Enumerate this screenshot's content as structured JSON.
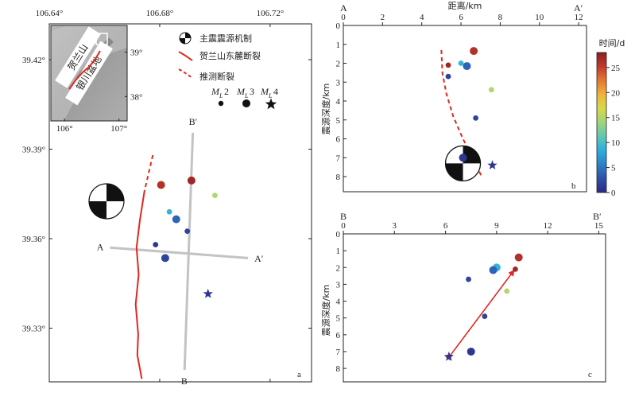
{
  "chart_data": [
    {
      "panel": "a",
      "type": "map",
      "x_ticks": [
        "106.64°",
        "106.68°",
        "106.72°"
      ],
      "y_ticks": [
        "39.42°",
        "39.39°",
        "39.36°",
        "39.33°"
      ],
      "xlim": [
        106.64,
        106.735
      ],
      "ylim": [
        39.312,
        39.432
      ],
      "fault_color": "#e3261e",
      "profile_color": "#c3c3c3",
      "profiles": [
        {
          "start_label": "A",
          "end_label": "A′",
          "start": [
            106.662,
            39.357
          ],
          "end": [
            106.712,
            39.3535
          ]
        },
        {
          "start_label": "B′",
          "end_label": "B",
          "start": [
            106.692,
            39.3955
          ],
          "end": [
            106.689,
            39.316
          ]
        }
      ],
      "fault_solid": [
        [
          106.6745,
          39.376
        ],
        [
          106.6728,
          39.366
        ],
        [
          106.6716,
          39.357
        ],
        [
          106.6724,
          39.348
        ],
        [
          106.6713,
          39.338
        ],
        [
          106.6722,
          39.328
        ],
        [
          106.6719,
          39.321
        ],
        [
          106.6735,
          39.313
        ]
      ],
      "fault_dashed": [
        [
          106.6775,
          39.388
        ],
        [
          106.6745,
          39.376
        ]
      ],
      "beachball_label": "",
      "events": [
        {
          "lon": 106.6805,
          "lat": 39.378,
          "mag": 3,
          "t": 26
        },
        {
          "lon": 106.6915,
          "lat": 39.3795,
          "mag": 3,
          "t": 27
        },
        {
          "lon": 106.7,
          "lat": 39.3745,
          "mag": 2,
          "t": 15
        },
        {
          "lon": 106.6835,
          "lat": 39.369,
          "mag": 2,
          "t": 9
        },
        {
          "lon": 106.686,
          "lat": 39.3665,
          "mag": 3,
          "t": 4
        },
        {
          "lon": 106.69,
          "lat": 39.3625,
          "mag": 2,
          "t": 2
        },
        {
          "lon": 106.6785,
          "lat": 39.358,
          "mag": 2,
          "t": 1
        },
        {
          "lon": 106.682,
          "lat": 39.3535,
          "mag": 3,
          "t": 2
        },
        {
          "lon": 106.6975,
          "lat": 39.3415,
          "mag": 4,
          "t": 1
        }
      ],
      "inset": {
        "x_ticks": [
          "106°",
          "107°"
        ],
        "y_ticks": [
          "39°",
          "38°"
        ],
        "xlim": [
          105.75,
          107.15
        ],
        "ylim": [
          37.45,
          39.6
        ],
        "labels": [
          "贺兰山",
          "银川盆地"
        ]
      },
      "legend": {
        "mechanism": "主震震源机制",
        "fault": "贺兰山东麓断裂",
        "inferred": "推测断裂",
        "mags": [
          "M",
          "L",
          "2",
          "3",
          "4"
        ]
      }
    },
    {
      "panel": "b",
      "type": "scatter",
      "start_label": "A",
      "end_label": "A′",
      "xlabel": "距离/km",
      "ylabel": "震源深度/km",
      "xlim": [
        0,
        12.4
      ],
      "ylim": [
        0,
        8.8
      ],
      "x_ticks": [
        0,
        2,
        4,
        6,
        8,
        10,
        12
      ],
      "y_ticks": [
        0,
        1,
        2,
        3,
        4,
        5,
        6,
        7,
        8
      ],
      "fault_trace": [
        [
          5.0,
          1.3
        ],
        [
          5.05,
          2.5
        ],
        [
          5.25,
          3.6
        ],
        [
          5.6,
          4.8
        ],
        [
          6.1,
          6.0
        ],
        [
          6.7,
          7.2
        ],
        [
          7.05,
          8.0
        ]
      ],
      "beachball": {
        "x": 6.1,
        "y": 7.3
      },
      "events": [
        {
          "x": 6.65,
          "y": 1.35,
          "mag": 3,
          "t": 26
        },
        {
          "x": 5.35,
          "y": 2.1,
          "mag": 2,
          "t": 27
        },
        {
          "x": 6.0,
          "y": 2.0,
          "mag": 2,
          "t": 9
        },
        {
          "x": 6.3,
          "y": 2.15,
          "mag": 3,
          "t": 4
        },
        {
          "x": 5.35,
          "y": 2.7,
          "mag": 2,
          "t": 2
        },
        {
          "x": 7.55,
          "y": 3.4,
          "mag": 2,
          "t": 15
        },
        {
          "x": 6.75,
          "y": 4.9,
          "mag": 2,
          "t": 2
        },
        {
          "x": 6.1,
          "y": 7.0,
          "mag": 3,
          "t": 1
        },
        {
          "x": 7.6,
          "y": 7.4,
          "mag": 4,
          "t": 1
        }
      ]
    },
    {
      "panel": "c",
      "type": "scatter",
      "start_label": "B",
      "end_label": "B′",
      "ylabel": "震源深度/km",
      "xlim": [
        0,
        15.4
      ],
      "ylim": [
        0,
        8.8
      ],
      "x_ticks": [
        0,
        3,
        6,
        9,
        12,
        15
      ],
      "y_ticks": [
        0,
        1,
        2,
        3,
        4,
        5,
        6,
        7,
        8
      ],
      "arrow_color": "#e3261e",
      "arrow": {
        "from": [
          6.3,
          7.2
        ],
        "to": [
          10.0,
          2.2
        ]
      },
      "events": [
        {
          "x": 10.3,
          "y": 1.4,
          "mag": 3,
          "t": 26
        },
        {
          "x": 10.1,
          "y": 2.1,
          "mag": 2,
          "t": 27
        },
        {
          "x": 9.0,
          "y": 2.0,
          "mag": 3,
          "t": 9
        },
        {
          "x": 8.8,
          "y": 2.15,
          "mag": 3,
          "t": 4
        },
        {
          "x": 7.35,
          "y": 2.7,
          "mag": 2,
          "t": 2
        },
        {
          "x": 9.6,
          "y": 3.4,
          "mag": 2,
          "t": 15
        },
        {
          "x": 8.3,
          "y": 4.9,
          "mag": 2,
          "t": 2
        },
        {
          "x": 7.5,
          "y": 7.0,
          "mag": 3,
          "t": 1
        },
        {
          "x": 6.2,
          "y": 7.3,
          "mag": 4,
          "t": 1
        }
      ]
    }
  ],
  "colorbar": {
    "title": "时间/d",
    "range": [
      0,
      28
    ],
    "ticks": [
      0,
      5,
      10,
      15,
      20,
      25
    ],
    "stops": [
      "#2c2a84",
      "#2e4fa8",
      "#2d80c8",
      "#2aaee0",
      "#5fc7b4",
      "#9fd47a",
      "#d6d94a",
      "#f0b43a",
      "#e57831",
      "#c3392b",
      "#8a1e23"
    ]
  }
}
